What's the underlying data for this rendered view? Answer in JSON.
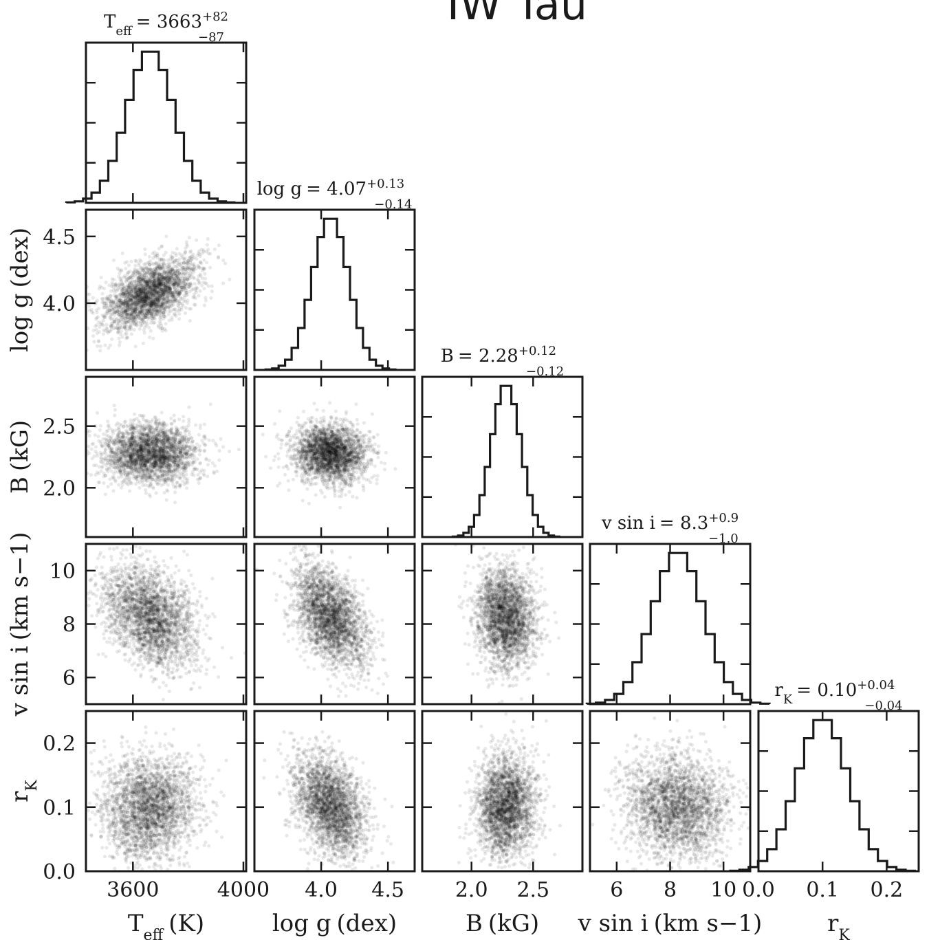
{
  "figure": {
    "title": "IW Tau"
  },
  "chart_data": {
    "type": "corner",
    "parameters": [
      {
        "key": "teff",
        "sym": "T",
        "sub": "eff",
        "unit": "(K)",
        "title": {
          "value": "3663",
          "plus": "+82",
          "minus": "−87"
        },
        "median": 3663,
        "sigma_plus": 82,
        "sigma_minus": 87,
        "range": [
          3430,
          4010
        ],
        "ticks": [
          3600,
          4000
        ],
        "tick_labels": [
          "3600",
          "4000"
        ]
      },
      {
        "key": "logg",
        "sym": "log g",
        "sub": "",
        "unit": "(dex)",
        "title": {
          "value": "4.07",
          "plus": "+0.13",
          "minus": "−0.14"
        },
        "median": 4.07,
        "sigma_plus": 0.13,
        "sigma_minus": 0.14,
        "range": [
          3.5,
          4.7
        ],
        "ticks": [
          4.0,
          4.5
        ],
        "tick_labels": [
          "4.0",
          "4.5"
        ]
      },
      {
        "key": "b",
        "sym": "B",
        "sub": "",
        "unit": "(kG)",
        "title": {
          "value": "2.28",
          "plus": "+0.12",
          "minus": "−0.12"
        },
        "median": 2.28,
        "sigma_plus": 0.12,
        "sigma_minus": 0.12,
        "range": [
          1.6,
          2.9
        ],
        "ticks": [
          2.0,
          2.5
        ],
        "tick_labels": [
          "2.0",
          "2.5"
        ]
      },
      {
        "key": "vsini",
        "sym": "v sin i",
        "sub": "",
        "unit": "(km s−1)",
        "title": {
          "value": "8.3",
          "plus": "+0.9",
          "minus": "−1.0"
        },
        "median": 8.3,
        "sigma_plus": 0.9,
        "sigma_minus": 1.0,
        "range": [
          5.0,
          11.0
        ],
        "ticks": [
          6,
          8,
          10
        ],
        "tick_labels": [
          "6",
          "8",
          "10"
        ]
      },
      {
        "key": "rk",
        "sym": "r",
        "sub": "K",
        "unit": "",
        "title": {
          "value": "0.10",
          "plus": "+0.04",
          "minus": "−0.04"
        },
        "median": 0.1,
        "sigma_plus": 0.04,
        "sigma_minus": 0.04,
        "range": [
          0.0,
          0.25
        ],
        "ticks": [
          0.0,
          0.1,
          0.2
        ],
        "tick_labels": [
          "0.0",
          "0.1",
          "0.2"
        ]
      }
    ],
    "correlations": [
      {
        "pair": [
          "logg",
          "teff"
        ],
        "r": 0.55
      },
      {
        "pair": [
          "b",
          "teff"
        ],
        "r": 0.0
      },
      {
        "pair": [
          "b",
          "logg"
        ],
        "r": -0.05
      },
      {
        "pair": [
          "vsini",
          "teff"
        ],
        "r": -0.35
      },
      {
        "pair": [
          "vsini",
          "logg"
        ],
        "r": -0.45
      },
      {
        "pair": [
          "vsini",
          "b"
        ],
        "r": -0.1
      },
      {
        "pair": [
          "rk",
          "teff"
        ],
        "r": 0.0
      },
      {
        "pair": [
          "rk",
          "logg"
        ],
        "r": -0.4
      },
      {
        "pair": [
          "rk",
          "b"
        ],
        "r": 0.05
      },
      {
        "pair": [
          "rk",
          "vsini"
        ],
        "r": -0.1
      }
    ],
    "histogram_bins": 20,
    "samples_per_panel": 2600
  }
}
